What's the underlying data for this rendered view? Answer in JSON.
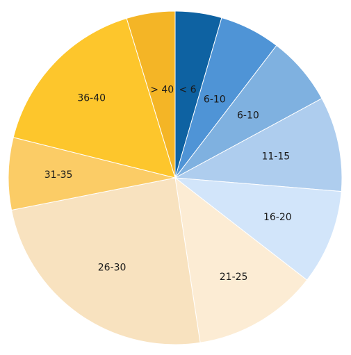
{
  "chart_data": {
    "type": "pie",
    "title": "",
    "start_angle_deg": 0,
    "direction": "clockwise",
    "legend": "none",
    "slices": [
      {
        "label": "< 6",
        "value": 4.5,
        "color": "#0e62a2"
      },
      {
        "label": "6-10",
        "value": 5.9,
        "color": "#4f94d6"
      },
      {
        "label": "6-10",
        "value": 6.7,
        "color": "#7fb1e0"
      },
      {
        "label": "11-15",
        "value": 9.2,
        "color": "#aecdee"
      },
      {
        "label": "16-20",
        "value": 9.2,
        "color": "#d2e5fa"
      },
      {
        "label": "21-25",
        "value": 12.1,
        "color": "#fcecd4"
      },
      {
        "label": "26-30",
        "value": 24.3,
        "color": "#f8e2bf"
      },
      {
        "label": "31-35",
        "value": 7.0,
        "color": "#fbcc66"
      },
      {
        "label": "36-40",
        "value": 16.4,
        "color": "#fdc62c"
      },
      {
        "label": "> 40",
        "value": 4.7,
        "color": "#f4b526"
      }
    ]
  }
}
